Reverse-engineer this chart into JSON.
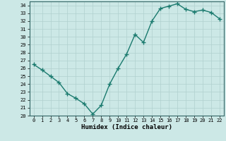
{
  "title": "",
  "xlabel": "Humidex (Indice chaleur)",
  "ylabel": "",
  "x": [
    0,
    1,
    2,
    3,
    4,
    5,
    6,
    7,
    8,
    9,
    10,
    11,
    12,
    13,
    14,
    15,
    16,
    17,
    18,
    19,
    20,
    21,
    22
  ],
  "y": [
    26.5,
    25.8,
    25.0,
    24.2,
    22.8,
    22.2,
    21.5,
    20.2,
    21.3,
    24.0,
    26.0,
    27.8,
    30.3,
    29.3,
    32.0,
    33.6,
    33.9,
    34.2,
    33.5,
    33.2,
    33.4,
    33.1,
    32.3
  ],
  "line_color": "#1a7a6e",
  "marker": "+",
  "bg_color": "#cce8e6",
  "grid_color": "#b0d0ce",
  "ylim": [
    20,
    34.5
  ],
  "yticks": [
    20,
    21,
    22,
    23,
    24,
    25,
    26,
    27,
    28,
    29,
    30,
    31,
    32,
    33,
    34
  ],
  "xticks": [
    0,
    1,
    2,
    3,
    4,
    5,
    6,
    7,
    8,
    9,
    10,
    11,
    12,
    13,
    14,
    15,
    16,
    17,
    18,
    19,
    20,
    21,
    22
  ],
  "tick_fontsize": 5,
  "label_fontsize": 6.5,
  "linewidth": 1.0,
  "markersize": 4
}
